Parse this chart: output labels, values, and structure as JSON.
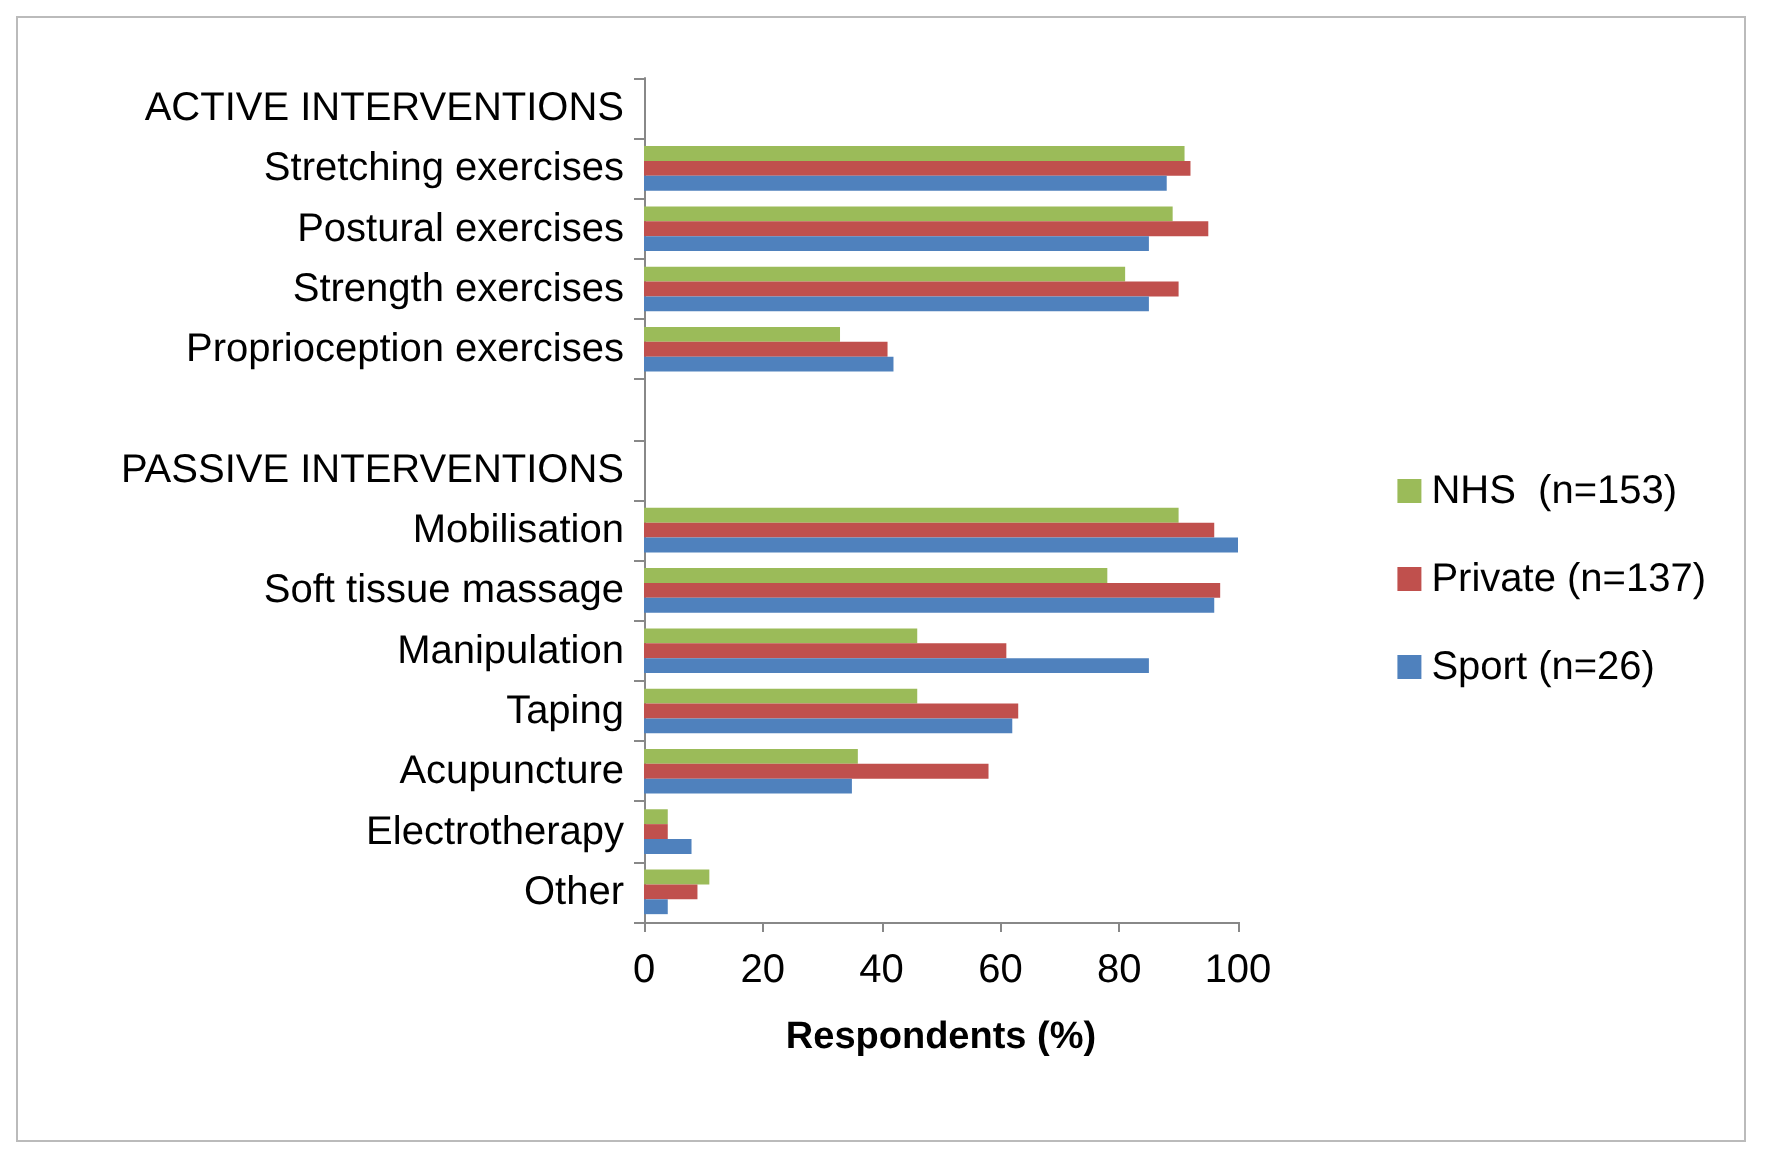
{
  "chart_data": {
    "type": "bar",
    "orientation": "horizontal",
    "xlabel": "Respondents (%)",
    "categories": [
      "ACTIVE INTERVENTIONS",
      "Stretching exercises",
      "Postural exercises",
      "Strength exercises",
      "Proprioception exercises",
      null,
      "PASSIVE INTERVENTIONS",
      "Mobilisation",
      "Soft tissue massage",
      "Manipulation",
      "Taping",
      "Acupuncture",
      "Electrotherapy",
      "Other"
    ],
    "series": [
      {
        "name": "NHS  (n=153)",
        "color": "#9bbb59",
        "values": [
          null,
          91,
          89,
          81,
          33,
          null,
          null,
          90,
          78,
          46,
          46,
          36,
          4,
          11
        ]
      },
      {
        "name": "Private (n=137)",
        "color": "#c0504d",
        "values": [
          null,
          92,
          95,
          90,
          41,
          null,
          null,
          96,
          97,
          61,
          63,
          58,
          4,
          9
        ]
      },
      {
        "name": "Sport (n=26)",
        "color": "#4f81bd",
        "values": [
          null,
          88,
          85,
          85,
          42,
          null,
          null,
          100,
          96,
          85,
          62,
          35,
          8,
          4
        ]
      }
    ],
    "xlim": [
      0,
      100
    ],
    "xticks": [
      0,
      20,
      40,
      60,
      80,
      100
    ],
    "grid": false,
    "legend": "right"
  }
}
